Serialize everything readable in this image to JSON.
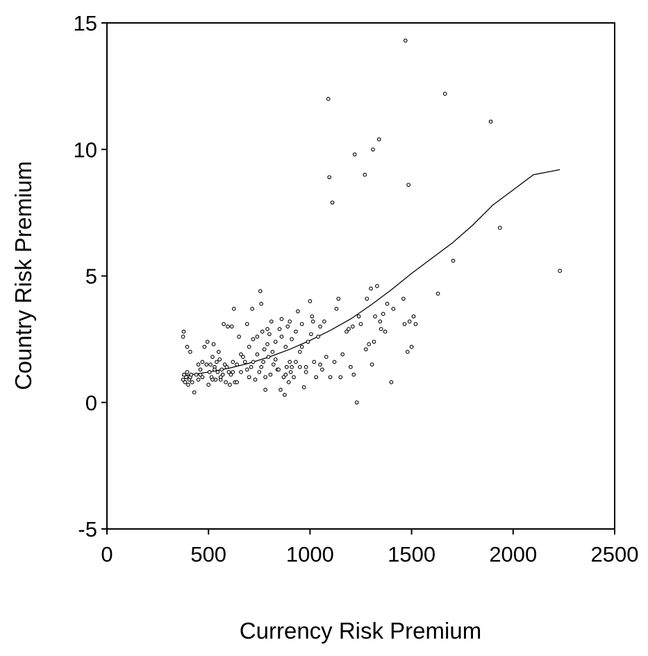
{
  "chart_data": {
    "type": "scatter",
    "title": "",
    "xlabel": "Currency  Risk Premium",
    "ylabel": "Country Risk Premium",
    "xlim": [
      0,
      2500
    ],
    "ylim": [
      -5,
      15
    ],
    "xticks": [
      "0",
      "500",
      "1000",
      "1500",
      "2000",
      "2500"
    ],
    "yticks": [
      "-5",
      "0",
      "5",
      "10",
      "15"
    ],
    "grid": false,
    "legend": "none",
    "marker": "open-circle",
    "points": [
      [
        375,
        0.9
      ],
      [
        380,
        1.1
      ],
      [
        385,
        0.8
      ],
      [
        390,
        1.0
      ],
      [
        395,
        1.2
      ],
      [
        400,
        0.7
      ],
      [
        405,
        0.9
      ],
      [
        410,
        1.0
      ],
      [
        415,
        1.1
      ],
      [
        420,
        0.8
      ],
      [
        375,
        2.6
      ],
      [
        378,
        2.8
      ],
      [
        395,
        2.2
      ],
      [
        410,
        2.0
      ],
      [
        430,
        0.4
      ],
      [
        440,
        1.1
      ],
      [
        450,
        0.9
      ],
      [
        460,
        1.3
      ],
      [
        470,
        1.0
      ],
      [
        480,
        2.2
      ],
      [
        490,
        1.5
      ],
      [
        495,
        2.4
      ],
      [
        500,
        0.7
      ],
      [
        505,
        1.2
      ],
      [
        510,
        1.5
      ],
      [
        515,
        1.0
      ],
      [
        520,
        1.8
      ],
      [
        525,
        2.3
      ],
      [
        530,
        1.4
      ],
      [
        535,
        0.9
      ],
      [
        540,
        1.6
      ],
      [
        545,
        1.2
      ],
      [
        550,
        2.0
      ],
      [
        555,
        1.7
      ],
      [
        560,
        0.9
      ],
      [
        565,
        1.3
      ],
      [
        570,
        1.1
      ],
      [
        575,
        3.1
      ],
      [
        580,
        1.5
      ],
      [
        585,
        0.8
      ],
      [
        590,
        1.4
      ],
      [
        595,
        3.0
      ],
      [
        600,
        1.2
      ],
      [
        605,
        0.7
      ],
      [
        610,
        1.1
      ],
      [
        615,
        3.0
      ],
      [
        620,
        1.6
      ],
      [
        625,
        3.7
      ],
      [
        630,
        0.8
      ],
      [
        640,
        1.5
      ],
      [
        650,
        2.6
      ],
      [
        660,
        1.2
      ],
      [
        670,
        1.8
      ],
      [
        680,
        1.6
      ],
      [
        690,
        3.1
      ],
      [
        700,
        2.2
      ],
      [
        710,
        1.4
      ],
      [
        715,
        3.7
      ],
      [
        720,
        2.5
      ],
      [
        730,
        0.9
      ],
      [
        740,
        2.6
      ],
      [
        750,
        1.2
      ],
      [
        755,
        4.4
      ],
      [
        760,
        3.9
      ],
      [
        765,
        2.8
      ],
      [
        770,
        1.6
      ],
      [
        775,
        2.1
      ],
      [
        780,
        0.5
      ],
      [
        790,
        2.3
      ],
      [
        795,
        1.8
      ],
      [
        800,
        2.7
      ],
      [
        805,
        1.1
      ],
      [
        810,
        3.2
      ],
      [
        815,
        2.0
      ],
      [
        820,
        1.5
      ],
      [
        830,
        2.4
      ],
      [
        840,
        1.3
      ],
      [
        850,
        2.9
      ],
      [
        855,
        0.5
      ],
      [
        860,
        3.3
      ],
      [
        870,
        1.0
      ],
      [
        875,
        0.3
      ],
      [
        880,
        2.2
      ],
      [
        885,
        1.4
      ],
      [
        890,
        3.0
      ],
      [
        895,
        0.8
      ],
      [
        900,
        3.2
      ],
      [
        905,
        1.2
      ],
      [
        910,
        2.5
      ],
      [
        920,
        1.0
      ],
      [
        930,
        1.6
      ],
      [
        940,
        3.6
      ],
      [
        950,
        2.0
      ],
      [
        960,
        3.1
      ],
      [
        970,
        0.6
      ],
      [
        980,
        1.2
      ],
      [
        990,
        2.4
      ],
      [
        1000,
        4.0
      ],
      [
        1005,
        2.7
      ],
      [
        1015,
        3.2
      ],
      [
        1020,
        1.6
      ],
      [
        1030,
        1.0
      ],
      [
        1040,
        2.6
      ],
      [
        1050,
        1.5
      ],
      [
        1060,
        1.3
      ],
      [
        1070,
        3.2
      ],
      [
        1080,
        1.8
      ],
      [
        1090,
        12.0
      ],
      [
        1095,
        8.9
      ],
      [
        1100,
        1.0
      ],
      [
        1110,
        7.9
      ],
      [
        1130,
        3.7
      ],
      [
        1140,
        4.1
      ],
      [
        1150,
        1.0
      ],
      [
        1160,
        1.9
      ],
      [
        1180,
        2.8
      ],
      [
        1200,
        1.4
      ],
      [
        1210,
        3.0
      ],
      [
        1215,
        1.1
      ],
      [
        1220,
        9.8
      ],
      [
        1230,
        0.0
      ],
      [
        1240,
        3.4
      ],
      [
        1250,
        3.1
      ],
      [
        1270,
        9.0
      ],
      [
        1275,
        2.1
      ],
      [
        1280,
        4.1
      ],
      [
        1290,
        2.3
      ],
      [
        1300,
        4.5
      ],
      [
        1305,
        1.5
      ],
      [
        1310,
        10.0
      ],
      [
        1315,
        2.4
      ],
      [
        1320,
        3.4
      ],
      [
        1330,
        4.6
      ],
      [
        1340,
        10.4
      ],
      [
        1345,
        3.2
      ],
      [
        1350,
        2.9
      ],
      [
        1360,
        3.5
      ],
      [
        1370,
        2.8
      ],
      [
        1380,
        3.9
      ],
      [
        1400,
        0.8
      ],
      [
        1410,
        3.7
      ],
      [
        1460,
        4.1
      ],
      [
        1465,
        3.1
      ],
      [
        1470,
        14.3
      ],
      [
        1480,
        2.0
      ],
      [
        1485,
        8.6
      ],
      [
        1490,
        3.2
      ],
      [
        1500,
        2.2
      ],
      [
        1510,
        3.4
      ],
      [
        1520,
        3.1
      ],
      [
        1630,
        4.3
      ],
      [
        1665,
        12.2
      ],
      [
        1705,
        5.6
      ],
      [
        1890,
        11.1
      ],
      [
        1935,
        6.9
      ],
      [
        2230,
        5.2
      ],
      [
        450,
        1.5
      ],
      [
        460,
        1.1
      ],
      [
        470,
        1.6
      ],
      [
        520,
        0.9
      ],
      [
        530,
        1.3
      ],
      [
        560,
        1.0
      ],
      [
        620,
        1.2
      ],
      [
        640,
        0.8
      ],
      [
        660,
        1.9
      ],
      [
        690,
        1.3
      ],
      [
        700,
        1.0
      ],
      [
        720,
        1.6
      ],
      [
        740,
        1.9
      ],
      [
        760,
        1.4
      ],
      [
        780,
        1.0
      ],
      [
        790,
        2.9
      ],
      [
        830,
        1.7
      ],
      [
        845,
        1.3
      ],
      [
        860,
        2.6
      ],
      [
        880,
        1.1
      ],
      [
        900,
        1.6
      ],
      [
        910,
        1.4
      ],
      [
        930,
        2.8
      ],
      [
        950,
        1.4
      ],
      [
        960,
        2.2
      ],
      [
        980,
        1.4
      ],
      [
        1010,
        3.4
      ],
      [
        1050,
        3.0
      ],
      [
        1120,
        1.6
      ],
      [
        1190,
        2.9
      ]
    ],
    "fit_line": {
      "x": [
        370,
        500,
        600,
        700,
        800,
        900,
        1000,
        1100,
        1200,
        1300,
        1400,
        1500,
        1600,
        1700,
        1800,
        1900,
        2000,
        2100,
        2230
      ],
      "y": [
        1.05,
        1.2,
        1.35,
        1.55,
        1.8,
        2.1,
        2.45,
        2.85,
        3.3,
        3.85,
        4.45,
        5.1,
        5.7,
        6.3,
        7.0,
        7.8,
        8.4,
        9.0,
        9.2
      ]
    }
  }
}
